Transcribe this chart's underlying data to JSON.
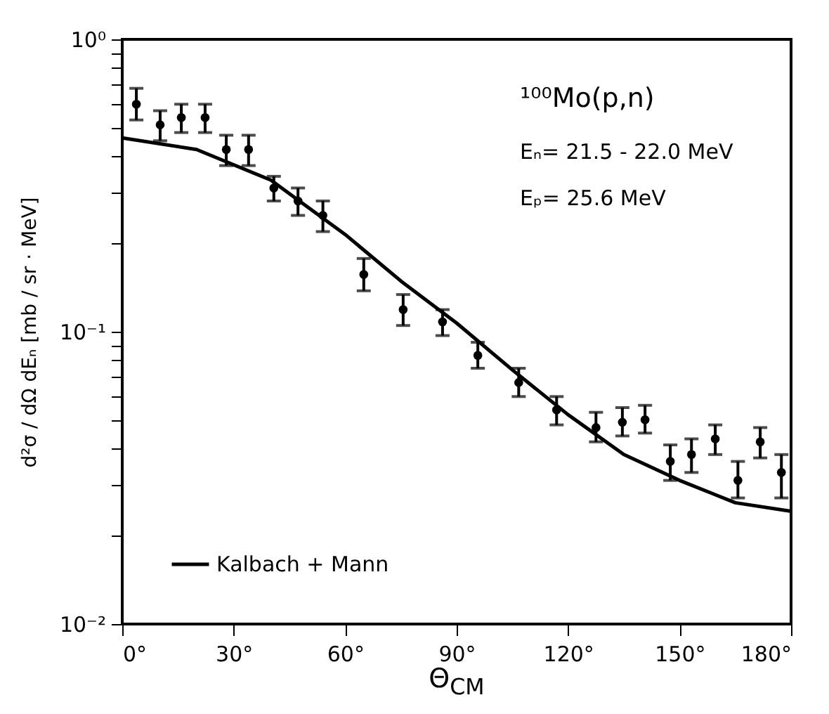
{
  "chart_data": {
    "type": "scatter",
    "xlabel": "Θ$_{CM}$",
    "ylabel": "d²σ / dΩ dEₙ [mb / sr · MeV]",
    "annotations": [
      "¹⁰⁰Mo(p,n)",
      "Eₙ= 21.5 - 22.0 MeV",
      "Eₚ= 25.6 MeV"
    ],
    "log": "y",
    "legend": "bottom left",
    "grid": false,
    "xlim": [
      0,
      180
    ],
    "xticks": [
      {
        "value": 0,
        "label": "0°"
      },
      {
        "value": 30,
        "label": "30°"
      },
      {
        "value": 60,
        "label": "60°"
      },
      {
        "value": 90,
        "label": "90°"
      },
      {
        "value": 120,
        "label": "120°"
      },
      {
        "value": 150,
        "label": "150°"
      },
      {
        "value": 180,
        "label": "180°"
      }
    ],
    "ylim": [
      0.01,
      1
    ],
    "yticks": [
      {
        "value": 0.01,
        "label": "10⁻²"
      },
      {
        "value": 0.02,
        "label": null
      },
      {
        "value": 0.03,
        "label": null
      },
      {
        "value": 0.04,
        "label": null
      },
      {
        "value": 0.05,
        "label": null
      },
      {
        "value": 0.06,
        "label": null
      },
      {
        "value": 0.07,
        "label": null
      },
      {
        "value": 0.08,
        "label": null
      },
      {
        "value": 0.09,
        "label": null
      },
      {
        "value": 0.1,
        "label": "10⁻¹"
      },
      {
        "value": 0.2,
        "label": null
      },
      {
        "value": 0.3,
        "label": null
      },
      {
        "value": 0.4,
        "label": null
      },
      {
        "value": 0.5,
        "label": null
      },
      {
        "value": 0.6,
        "label": null
      },
      {
        "value": 0.7,
        "label": null
      },
      {
        "value": 0.8,
        "label": null
      },
      {
        "value": 0.9,
        "label": null
      },
      {
        "value": 1,
        "label": "10⁰"
      }
    ],
    "series": [
      {
        "type": "scatter",
        "color": "#000000",
        "marker": "circle",
        "x": [
          3.8,
          10.2,
          15.9,
          22.3,
          28,
          34,
          40.8,
          47.3,
          54,
          65,
          75.6,
          86.2,
          95.7,
          106.7,
          116.9,
          127.5,
          134.6,
          140.7,
          147.5,
          153.2,
          159.6,
          165.7,
          171.7,
          177.4
        ],
        "values": [
          0.6,
          0.51,
          0.54,
          0.54,
          0.42,
          0.42,
          0.31,
          0.28,
          0.25,
          0.157,
          0.119,
          0.108,
          0.083,
          0.067,
          0.054,
          0.047,
          0.049,
          0.05,
          0.036,
          0.038,
          0.043,
          0.031,
          0.042,
          0.033
        ],
        "errors": [
          [
            0.53,
            0.68
          ],
          [
            0.45,
            0.57
          ],
          [
            0.48,
            0.6
          ],
          [
            0.48,
            0.6
          ],
          [
            0.37,
            0.47
          ],
          [
            0.37,
            0.47
          ],
          [
            0.28,
            0.34
          ],
          [
            0.25,
            0.31
          ],
          [
            0.22,
            0.28
          ],
          [
            0.138,
            0.178
          ],
          [
            0.105,
            0.134
          ],
          [
            0.097,
            0.119
          ],
          [
            0.075,
            0.092
          ],
          [
            0.06,
            0.075
          ],
          [
            0.048,
            0.06
          ],
          [
            0.042,
            0.053
          ],
          [
            0.044,
            0.055
          ],
          [
            0.045,
            0.056
          ],
          [
            0.031,
            0.041
          ],
          [
            0.033,
            0.043
          ],
          [
            0.038,
            0.048
          ],
          [
            0.027,
            0.036
          ],
          [
            0.037,
            0.047
          ],
          [
            0.027,
            0.038
          ]
        ]
      },
      {
        "type": "line",
        "name": "Kalbach + Mann",
        "color": "#000000",
        "line_style": "solid",
        "x": [
          0,
          20,
          40,
          60,
          75,
          90,
          105,
          120,
          135,
          150,
          165,
          180
        ],
        "values": [
          0.46,
          0.42,
          0.33,
          0.215,
          0.149,
          0.107,
          0.074,
          0.052,
          0.038,
          0.031,
          0.026,
          0.0243
        ]
      }
    ]
  }
}
